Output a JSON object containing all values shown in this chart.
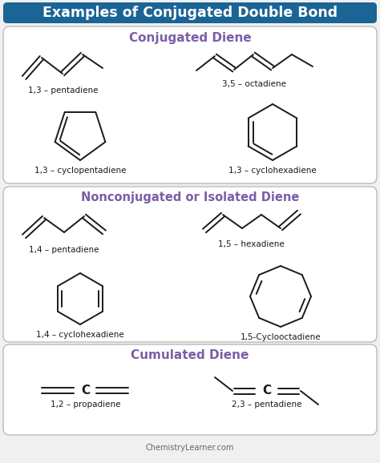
{
  "title": "Examples of Conjugated Double Bond",
  "title_bg": "#1a6496",
  "title_color": "#ffffff",
  "section1_title": "Conjugated Diene",
  "section2_title": "Nonconjugated or Isolated Diene",
  "section3_title": "Cumulated Diene",
  "section_title_color": "#7b5ea7",
  "bg_color": "#f0f0f0",
  "box_bg": "#ffffff",
  "box_edge": "#bbbbbb",
  "line_color": "#1a1a1a",
  "label_color": "#1a1a1a",
  "footer": "ChemistryLearner.com",
  "footer_color": "#666666"
}
